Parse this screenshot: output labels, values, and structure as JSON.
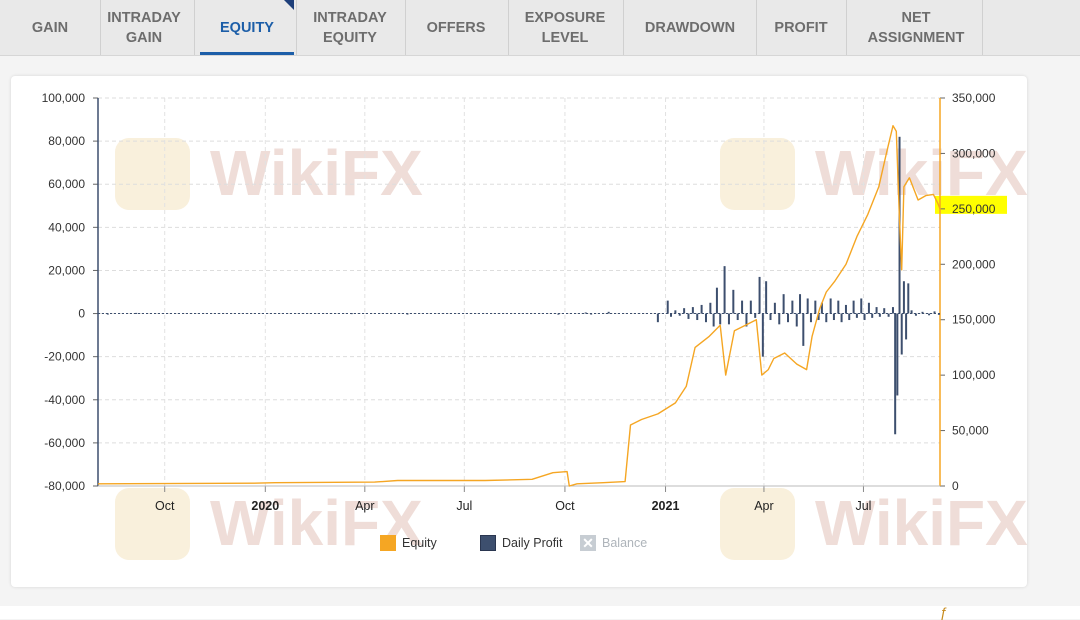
{
  "tabs": [
    {
      "label": "GAIN",
      "active": false
    },
    {
      "label": "INTRADAY\nGAIN",
      "active": false
    },
    {
      "label": "EQUITY",
      "active": true
    },
    {
      "label": "INTRADAY\nEQUITY",
      "active": false
    },
    {
      "label": "OFFERS",
      "active": false
    },
    {
      "label": "EXPOSURE\nLEVEL",
      "active": false
    },
    {
      "label": "DRAWDOWN",
      "active": false
    },
    {
      "label": "PROFIT",
      "active": false
    },
    {
      "label": "NET\nASSIGNMENT",
      "active": false
    }
  ],
  "colors": {
    "equity": "#f5a623",
    "daily_profit": "#3d4f6e",
    "balance_disabled": "#c7cdd3",
    "highlight": "#ffff00",
    "active_tab": "#1c5ea8"
  },
  "watermark_text": "WikiFX",
  "chart_data": {
    "type": "line",
    "x_start": "2019-08-01",
    "x_end": "2021-09-09",
    "x_ticks": [
      {
        "label": "Oct",
        "date": "2019-10-01",
        "bold": false
      },
      {
        "label": "2020",
        "date": "2020-01-01",
        "bold": true
      },
      {
        "label": "Apr",
        "date": "2020-04-01",
        "bold": false
      },
      {
        "label": "Jul",
        "date": "2020-07-01",
        "bold": false
      },
      {
        "label": "Oct",
        "date": "2020-10-01",
        "bold": false
      },
      {
        "label": "2021",
        "date": "2021-01-01",
        "bold": true
      },
      {
        "label": "Apr",
        "date": "2021-04-01",
        "bold": false
      },
      {
        "label": "Jul",
        "date": "2021-07-01",
        "bold": false
      }
    ],
    "y_left": {
      "min": -80000,
      "max": 100000,
      "ticks": [
        "100,000",
        "80,000",
        "60,000",
        "40,000",
        "20,000",
        "0",
        "-20,000",
        "-40,000",
        "-60,000",
        "-80,000"
      ],
      "tick_values": [
        100000,
        80000,
        60000,
        40000,
        20000,
        0,
        -20000,
        -40000,
        -60000,
        -80000
      ]
    },
    "y_right": {
      "min": 0,
      "max": 350000,
      "ticks": [
        "350,000",
        "300,000",
        "250,000",
        "200,000",
        "150,000",
        "100,000",
        "50,000",
        "0"
      ],
      "tick_values": [
        350000,
        300000,
        250000,
        200000,
        150000,
        100000,
        50000,
        0
      ],
      "highlighted_tick": "250,000"
    },
    "grid": true,
    "legend_position": "bottom-center",
    "legend": {
      "equity": "Equity",
      "daily_profit": "Daily Profit",
      "balance": "Balance"
    },
    "series": [
      {
        "name": "Equity",
        "axis": "right",
        "points": [
          [
            "2019-08-01",
            2000
          ],
          [
            "2019-12-20",
            2500
          ],
          [
            "2020-01-10",
            3000
          ],
          [
            "2020-04-10",
            3500
          ],
          [
            "2020-05-01",
            5000
          ],
          [
            "2020-07-20",
            5000
          ],
          [
            "2020-09-01",
            6000
          ],
          [
            "2020-09-20",
            12000
          ],
          [
            "2020-10-03",
            13000
          ],
          [
            "2020-10-05",
            0
          ],
          [
            "2020-10-12",
            2000
          ],
          [
            "2020-11-05",
            3000
          ],
          [
            "2020-11-25",
            4000
          ],
          [
            "2020-11-30",
            55000
          ],
          [
            "2020-12-10",
            60000
          ],
          [
            "2020-12-25",
            65000
          ],
          [
            "2021-01-10",
            75000
          ],
          [
            "2021-01-20",
            90000
          ],
          [
            "2021-01-28",
            125000
          ],
          [
            "2021-02-10",
            135000
          ],
          [
            "2021-02-20",
            145000
          ],
          [
            "2021-02-25",
            100000
          ],
          [
            "2021-03-05",
            140000
          ],
          [
            "2021-03-15",
            145000
          ],
          [
            "2021-03-25",
            150000
          ],
          [
            "2021-03-30",
            100000
          ],
          [
            "2021-04-05",
            105000
          ],
          [
            "2021-04-10",
            115000
          ],
          [
            "2021-04-20",
            120000
          ],
          [
            "2021-05-01",
            110000
          ],
          [
            "2021-05-10",
            105000
          ],
          [
            "2021-05-15",
            135000
          ],
          [
            "2021-05-22",
            160000
          ],
          [
            "2021-05-28",
            175000
          ],
          [
            "2021-06-05",
            185000
          ],
          [
            "2021-06-15",
            200000
          ],
          [
            "2021-06-25",
            225000
          ],
          [
            "2021-07-05",
            245000
          ],
          [
            "2021-07-15",
            270000
          ],
          [
            "2021-07-22",
            300000
          ],
          [
            "2021-07-28",
            325000
          ],
          [
            "2021-07-31",
            320000
          ],
          [
            "2021-08-03",
            240000
          ],
          [
            "2021-08-05",
            195000
          ],
          [
            "2021-08-07",
            270000
          ],
          [
            "2021-08-12",
            278000
          ],
          [
            "2021-08-20",
            258000
          ],
          [
            "2021-08-27",
            262000
          ],
          [
            "2021-09-03",
            263000
          ],
          [
            "2021-09-07",
            255000
          ],
          [
            "2021-09-09",
            250000
          ]
        ]
      },
      {
        "name": "Daily Profit",
        "axis": "left",
        "bars": [
          [
            "2019-08-10",
            -300
          ],
          [
            "2019-09-05",
            300
          ],
          [
            "2020-03-20",
            200
          ],
          [
            "2020-05-10",
            -200
          ],
          [
            "2020-09-25",
            -500
          ],
          [
            "2020-10-20",
            500
          ],
          [
            "2020-10-25",
            -400
          ],
          [
            "2020-11-10",
            800
          ],
          [
            "2020-12-25",
            -4000
          ],
          [
            "2021-01-03",
            6000
          ],
          [
            "2021-01-06",
            -1500
          ],
          [
            "2021-01-10",
            1500
          ],
          [
            "2021-01-14",
            -1000
          ],
          [
            "2021-01-18",
            2500
          ],
          [
            "2021-01-22",
            -2500
          ],
          [
            "2021-01-26",
            3000
          ],
          [
            "2021-01-30",
            -3000
          ],
          [
            "2021-02-03",
            4000
          ],
          [
            "2021-02-07",
            -4000
          ],
          [
            "2021-02-11",
            5000
          ],
          [
            "2021-02-14",
            -6000
          ],
          [
            "2021-02-17",
            12000
          ],
          [
            "2021-02-20",
            -5000
          ],
          [
            "2021-02-24",
            22000
          ],
          [
            "2021-02-28",
            -5000
          ],
          [
            "2021-03-04",
            11000
          ],
          [
            "2021-03-08",
            -3000
          ],
          [
            "2021-03-12",
            6000
          ],
          [
            "2021-03-16",
            -6000
          ],
          [
            "2021-03-20",
            6000
          ],
          [
            "2021-03-24",
            -2000
          ],
          [
            "2021-03-28",
            17000
          ],
          [
            "2021-03-31",
            -20000
          ],
          [
            "2021-04-03",
            15000
          ],
          [
            "2021-04-07",
            -3000
          ],
          [
            "2021-04-11",
            5000
          ],
          [
            "2021-04-15",
            -5000
          ],
          [
            "2021-04-19",
            9000
          ],
          [
            "2021-04-23",
            -4000
          ],
          [
            "2021-04-27",
            6000
          ],
          [
            "2021-05-01",
            -6000
          ],
          [
            "2021-05-04",
            9000
          ],
          [
            "2021-05-07",
            -15000
          ],
          [
            "2021-05-11",
            7000
          ],
          [
            "2021-05-14",
            -4000
          ],
          [
            "2021-05-18",
            6000
          ],
          [
            "2021-05-21",
            -3000
          ],
          [
            "2021-05-24",
            5000
          ],
          [
            "2021-05-28",
            -4000
          ],
          [
            "2021-06-01",
            7000
          ],
          [
            "2021-06-04",
            -3000
          ],
          [
            "2021-06-08",
            6000
          ],
          [
            "2021-06-11",
            -4000
          ],
          [
            "2021-06-15",
            4000
          ],
          [
            "2021-06-18",
            -3000
          ],
          [
            "2021-06-22",
            6000
          ],
          [
            "2021-06-25",
            -2000
          ],
          [
            "2021-06-29",
            7000
          ],
          [
            "2021-07-02",
            -3000
          ],
          [
            "2021-07-06",
            5000
          ],
          [
            "2021-07-09",
            -2000
          ],
          [
            "2021-07-13",
            3000
          ],
          [
            "2021-07-16",
            -1500
          ],
          [
            "2021-07-20",
            2500
          ],
          [
            "2021-07-24",
            -1500
          ],
          [
            "2021-07-28",
            3000
          ],
          [
            "2021-07-30",
            -56000
          ],
          [
            "2021-08-01",
            -38000
          ],
          [
            "2021-08-03",
            82000
          ],
          [
            "2021-08-05",
            -19000
          ],
          [
            "2021-08-07",
            15000
          ],
          [
            "2021-08-09",
            -12000
          ],
          [
            "2021-08-11",
            14000
          ],
          [
            "2021-08-14",
            1500
          ],
          [
            "2021-08-18",
            -1000
          ],
          [
            "2021-08-24",
            800
          ],
          [
            "2021-08-30",
            -800
          ],
          [
            "2021-09-04",
            1000
          ],
          [
            "2021-09-08",
            -600
          ]
        ]
      }
    ]
  }
}
